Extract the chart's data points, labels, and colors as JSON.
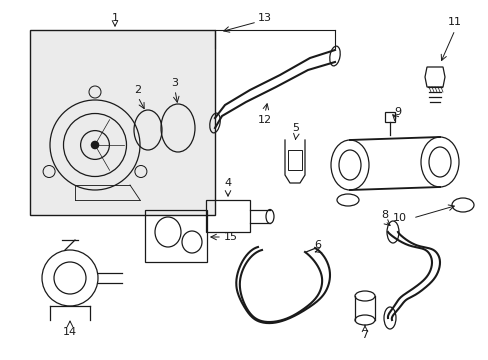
{
  "bg_color": "#ffffff",
  "line_color": "#1a1a1a",
  "figsize": [
    4.89,
    3.6
  ],
  "dpi": 100,
  "font_size": 8.0
}
